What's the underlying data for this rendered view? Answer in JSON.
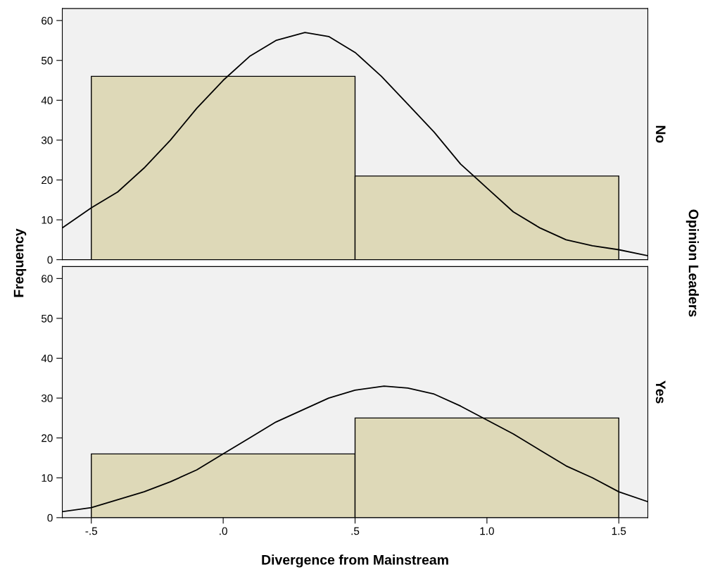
{
  "chart_data": [
    {
      "type": "histogram",
      "bins": [
        -0.5,
        0.5,
        1.5
      ],
      "values": [
        46,
        21
      ],
      "color": "#ded9b8",
      "y2label": "No",
      "ylabel": "Frequency",
      "annotations": [
        "Opinion Leaders"
      ],
      "series": [
        {
          "type": "line",
          "color": "#000000",
          "x": [
            -0.61,
            -0.5,
            -0.4,
            -0.3,
            -0.2,
            -0.1,
            0.0,
            0.1,
            0.2,
            0.31,
            0.4,
            0.5,
            0.6,
            0.7,
            0.8,
            0.9,
            1.0,
            1.1,
            1.2,
            1.3,
            1.4,
            1.5,
            1.61
          ],
          "values": [
            8,
            13,
            17,
            23,
            30,
            38,
            45,
            51,
            55,
            57,
            56,
            52,
            46,
            39,
            32,
            24,
            18,
            12,
            8,
            5,
            3.5,
            2.5,
            1
          ]
        }
      ],
      "xlim": [
        -0.61,
        1.61
      ],
      "ylim": [
        0,
        63
      ],
      "yticks": [
        0,
        10,
        20,
        30,
        40,
        50,
        60
      ],
      "tick_labels": "y",
      "grid": false,
      "legend": false
    },
    {
      "type": "histogram",
      "bins": [
        -0.5,
        0.5,
        1.5
      ],
      "values": [
        16,
        25
      ],
      "color": "#ded9b8",
      "y2label": "Yes",
      "xlabel": "Divergence from Mainstream",
      "series": [
        {
          "type": "line",
          "color": "#000000",
          "x": [
            -0.61,
            -0.5,
            -0.4,
            -0.3,
            -0.2,
            -0.1,
            0.0,
            0.1,
            0.2,
            0.3,
            0.4,
            0.5,
            0.61,
            0.7,
            0.8,
            0.9,
            1.0,
            1.1,
            1.2,
            1.3,
            1.4,
            1.5,
            1.61
          ],
          "values": [
            1.5,
            2.5,
            4.5,
            6.5,
            9,
            12,
            16,
            20,
            24,
            27,
            30,
            32,
            33,
            32.5,
            31,
            28,
            24.5,
            21,
            17,
            13,
            10,
            6.5,
            4
          ]
        }
      ],
      "xlim": [
        -0.61,
        1.61
      ],
      "ylim": [
        0,
        63
      ],
      "yticks": [
        0,
        10,
        20,
        30,
        40,
        50,
        60
      ],
      "xticks": [
        {
          "value": -0.5,
          "label": "-.5"
        },
        {
          "value": 0,
          "label": ".0"
        },
        {
          "value": 0.5,
          "label": ".5"
        },
        {
          "value": 1.0,
          "label": "1.0"
        },
        {
          "value": 1.5,
          "label": "1.5"
        }
      ],
      "grid": false,
      "legend": false
    }
  ]
}
